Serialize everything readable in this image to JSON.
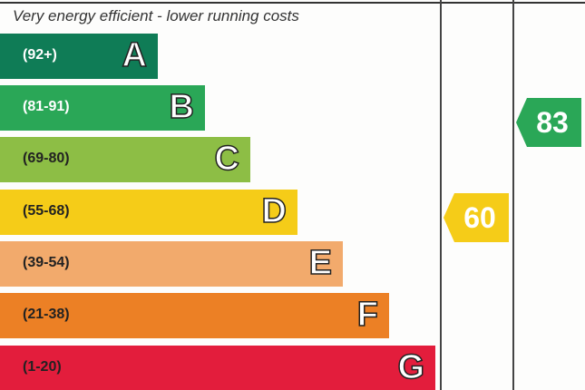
{
  "chart_data": {
    "type": "bar",
    "title": "Very energy efficient - lower running costs",
    "bands": [
      {
        "letter": "A",
        "range": "(92+)",
        "color": "#0f7c56",
        "text_color": "#ffffff"
      },
      {
        "letter": "B",
        "range": "(81-91)",
        "color": "#2aa757",
        "text_color": "#ffffff"
      },
      {
        "letter": "C",
        "range": "(69-80)",
        "color": "#8dbe45",
        "text_color": "#222222"
      },
      {
        "letter": "D",
        "range": "(55-68)",
        "color": "#f5cc18",
        "text_color": "#222222"
      },
      {
        "letter": "E",
        "range": "(39-54)",
        "color": "#f2aa6c",
        "text_color": "#222222"
      },
      {
        "letter": "F",
        "range": "(21-38)",
        "color": "#ec8025",
        "text_color": "#222222"
      },
      {
        "letter": "G",
        "range": "(1-20)",
        "color": "#e31d3c",
        "text_color": "#222222"
      }
    ],
    "current": {
      "value": "60",
      "band": "D",
      "color": "#f5cc18"
    },
    "potential": {
      "value": "83",
      "band": "B",
      "color": "#2aa757"
    }
  }
}
